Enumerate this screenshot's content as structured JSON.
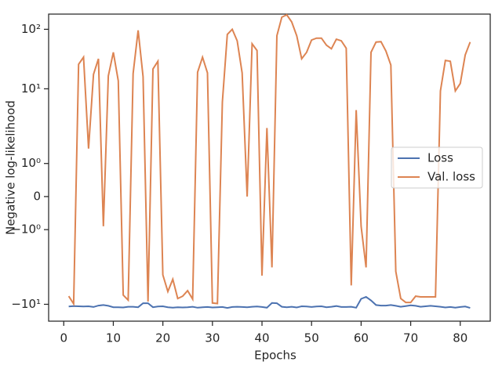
{
  "chart_data": {
    "type": "line",
    "xlabel": "Epochs",
    "ylabel": "Negative log-likelihood",
    "x": [
      1,
      2,
      3,
      4,
      5,
      6,
      7,
      8,
      9,
      10,
      11,
      12,
      13,
      14,
      15,
      16,
      17,
      18,
      19,
      20,
      21,
      22,
      23,
      24,
      25,
      26,
      27,
      28,
      29,
      30,
      31,
      32,
      33,
      34,
      35,
      36,
      37,
      38,
      39,
      40,
      41,
      42,
      43,
      44,
      45,
      46,
      47,
      48,
      49,
      50,
      51,
      52,
      53,
      54,
      55,
      56,
      57,
      58,
      59,
      60,
      61,
      62,
      63,
      64,
      65,
      66,
      67,
      68,
      69,
      70,
      71,
      72,
      73,
      74,
      75,
      76,
      77,
      78,
      79,
      80,
      81,
      82
    ],
    "series": [
      {
        "name": "Loss",
        "color": "#4c72b0",
        "values": [
          -10.9,
          -10.7,
          -10.8,
          -10.9,
          -10.8,
          -11.1,
          -10.5,
          -10.3,
          -10.6,
          -11.2,
          -11.2,
          -11.3,
          -11.0,
          -11.0,
          -11.2,
          -9.6,
          -9.6,
          -11.2,
          -10.9,
          -10.8,
          -11.2,
          -11.4,
          -11.2,
          -11.3,
          -11.2,
          -11.0,
          -11.4,
          -11.2,
          -11.1,
          -11.3,
          -11.2,
          -11.1,
          -11.5,
          -11.1,
          -11.0,
          -11.1,
          -11.2,
          -11.0,
          -10.9,
          -11.1,
          -11.4,
          -9.5,
          -9.6,
          -11.0,
          -11.2,
          -11.0,
          -11.3,
          -10.8,
          -10.9,
          -11.1,
          -10.9,
          -10.8,
          -11.2,
          -11.0,
          -10.7,
          -11.1,
          -11.1,
          -11.0,
          -11.4,
          -8.1,
          -7.5,
          -8.6,
          -10.3,
          -10.5,
          -10.5,
          -10.3,
          -10.6,
          -11.0,
          -10.7,
          -10.4,
          -10.6,
          -11.0,
          -10.8,
          -10.6,
          -10.8,
          -11.0,
          -11.3,
          -11.1,
          -11.4,
          -11.1,
          -10.9,
          -11.5
        ]
      },
      {
        "name": "Val. loss",
        "color": "#dd8452",
        "values": [
          -7.3,
          -9.8,
          25.8,
          34,
          1.45,
          17.5,
          32,
          -0.9,
          16.5,
          41,
          13.6,
          -7,
          -8.5,
          18,
          96,
          16,
          -9,
          21.5,
          29,
          -3.2,
          -6.1,
          -3.8,
          -8,
          -7.3,
          -5.9,
          -8.2,
          19,
          34,
          18.5,
          -9.5,
          -9.7,
          6,
          82,
          100,
          64,
          18.5,
          0,
          57,
          44,
          -3.3,
          2.2,
          -2.4,
          78,
          160,
          175,
          133,
          78,
          32,
          41,
          66,
          71,
          71,
          54,
          47,
          68,
          64,
          48,
          -4.8,
          4.4,
          -0.9,
          -2.4,
          41,
          61,
          62,
          43,
          25,
          -2.8,
          -8,
          -9.3,
          -9.3,
          -7.3,
          -7.5,
          -7.5,
          -7.5,
          -7.5,
          9.2,
          30,
          29,
          9.2,
          12.3,
          37,
          61
        ]
      }
    ],
    "xlim": [
      -3.05,
      86.05
    ],
    "xticks": [
      0,
      10,
      20,
      30,
      40,
      50,
      60,
      70,
      80
    ],
    "ylim": [
      -19.2,
      180
    ],
    "yscale": "symlog",
    "linthresh": 2,
    "linscale": 1,
    "yticks": [
      {
        "value": -10,
        "label": "−10¹"
      },
      {
        "value": -1,
        "label": "−10⁰"
      },
      0,
      {
        "value": 1,
        "label": "10⁰"
      },
      {
        "value": 10,
        "label": "10¹"
      },
      {
        "value": 100,
        "label": "10²"
      }
    ],
    "legend": "center right"
  }
}
